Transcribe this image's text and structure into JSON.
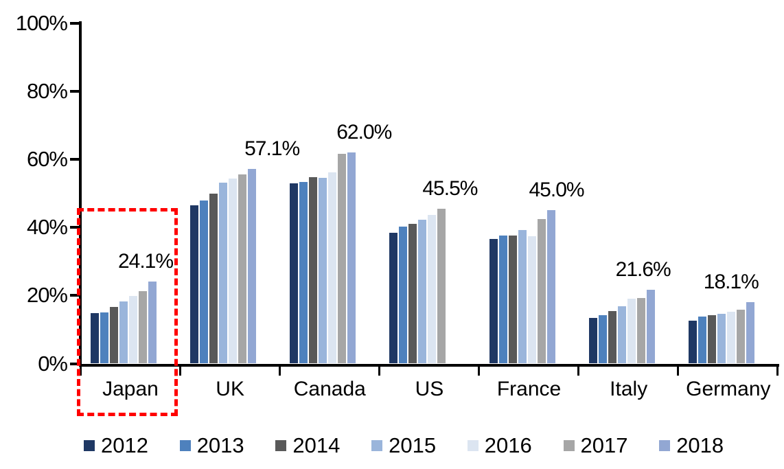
{
  "chart_data": {
    "type": "bar",
    "title": "",
    "xlabel": "",
    "ylabel": "",
    "categories": [
      "Japan",
      "UK",
      "Canada",
      "US",
      "France",
      "Italy",
      "Germany"
    ],
    "series": [
      {
        "name": "2012",
        "color": "#1f3864",
        "values": [
          14.8,
          46.4,
          53.0,
          38.4,
          36.6,
          13.4,
          12.6
        ]
      },
      {
        "name": "2013",
        "color": "#4e81bd",
        "values": [
          15.1,
          47.9,
          53.4,
          40.2,
          37.7,
          14.2,
          13.8
        ]
      },
      {
        "name": "2014",
        "color": "#595959",
        "values": [
          16.6,
          49.9,
          54.8,
          41.0,
          37.7,
          15.4,
          14.3
        ]
      },
      {
        "name": "2015",
        "color": "#9ab5db",
        "values": [
          18.3,
          53.2,
          54.6,
          42.3,
          39.3,
          16.9,
          14.7
        ]
      },
      {
        "name": "2016",
        "color": "#dce5f1",
        "values": [
          19.9,
          54.4,
          56.2,
          43.6,
          37.3,
          19.1,
          15.2
        ]
      },
      {
        "name": "2017",
        "color": "#a6a6a6",
        "values": [
          21.2,
          55.6,
          61.5,
          45.5,
          42.4,
          19.3,
          15.9
        ]
      },
      {
        "name": "2018",
        "color": "#92a7d3",
        "values": [
          24.1,
          57.1,
          62.0,
          null,
          45.0,
          21.6,
          18.1
        ]
      }
    ],
    "data_labels": [
      "24.1%",
      "57.1%",
      "62.0%",
      "45.5%",
      "45.0%",
      "21.6%",
      "18.1%"
    ],
    "y_ticks": [
      {
        "label": "0%",
        "value": 0
      },
      {
        "label": "20%",
        "value": 20
      },
      {
        "label": "40%",
        "value": 40
      },
      {
        "label": "60%",
        "value": 60
      },
      {
        "label": "80%",
        "value": 80
      },
      {
        "label": "100%",
        "value": 100
      }
    ],
    "ylim": [
      0,
      100
    ],
    "grid": false,
    "legend_position": "bottom",
    "legend_labels": [
      "2012",
      "2013",
      "2014",
      "2015",
      "2016",
      "2017",
      "2018"
    ],
    "highlight": {
      "category": "Japan",
      "style": "dashed-box",
      "color": "#ff0000"
    }
  }
}
